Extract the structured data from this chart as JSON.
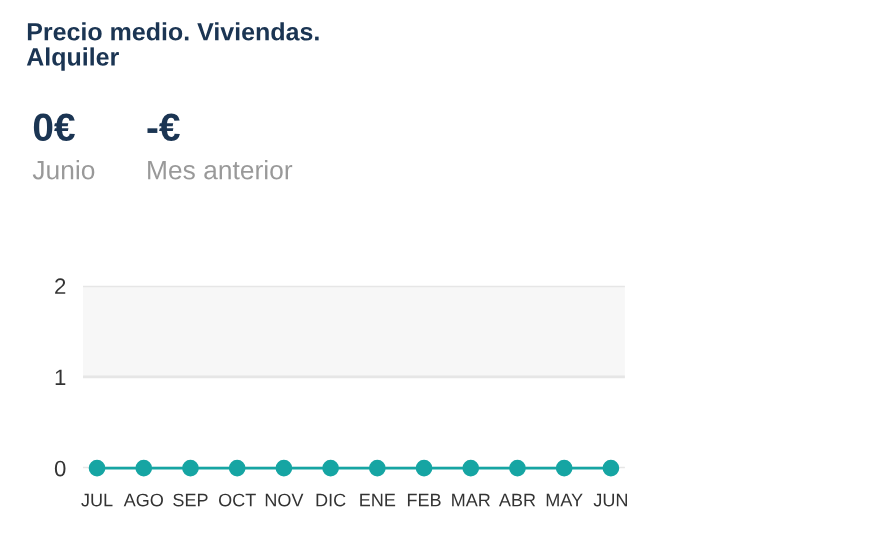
{
  "chart_data": {
    "type": "line",
    "title": "Precio medio. Viviendas.\nAlquiler",
    "categories": [
      "JUL",
      "AGO",
      "SEP",
      "OCT",
      "NOV",
      "DIC",
      "ENE",
      "FEB",
      "MAR",
      "ABR",
      "MAY",
      "JUN"
    ],
    "series": [
      {
        "color": "#16a5a3",
        "values": [
          0,
          0,
          0,
          0,
          0,
          0,
          0,
          0,
          0,
          0,
          0,
          0
        ]
      }
    ],
    "ylim": [
      0,
      2
    ],
    "yticks": [
      0,
      1,
      2
    ],
    "grid": "y",
    "marker": "circle",
    "line_style": "solid",
    "bands": [
      {
        "axis": "y",
        "from": 1,
        "to": 2,
        "color": "#f7f7f7"
      }
    ],
    "annotations": [
      "0€",
      "Junio",
      "-€",
      "Mes anterior"
    ]
  }
}
